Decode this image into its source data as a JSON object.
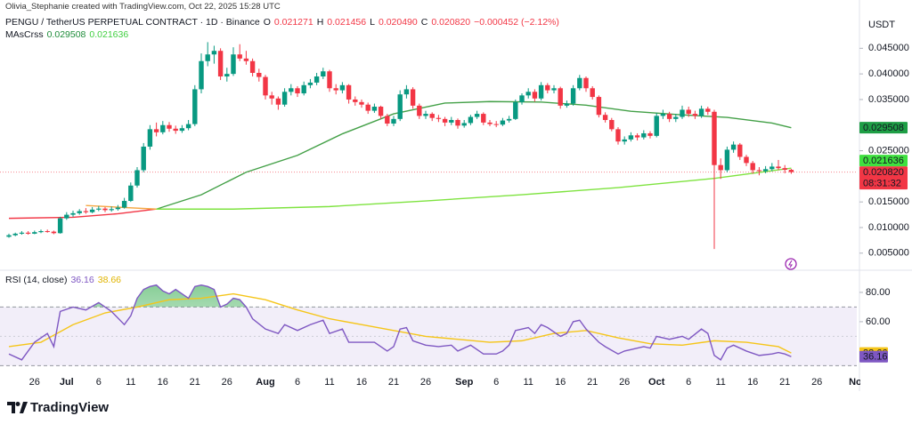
{
  "header": {
    "attribution": "Olivia_Stephanie created with TradingView.com, Oct 22, 2025 15:28 UTC",
    "symbol": "PENGU / TetherUS PERPETUAL CONTRACT · 1D · Binance",
    "ohlc": [
      {
        "key": "O",
        "value": "0.021271"
      },
      {
        "key": "H",
        "value": "0.021456"
      },
      {
        "key": "L",
        "value": "0.020490"
      },
      {
        "key": "C",
        "value": "0.020820"
      }
    ],
    "change": "−0.000452 (−2.12%)"
  },
  "chart_data": {
    "type": "candlestick",
    "currency": "USDT",
    "up_color": "#089981",
    "down_color": "#f23645",
    "candles": [
      [
        0.0082,
        0.0088,
        0.008,
        0.0085
      ],
      [
        0.0085,
        0.009,
        0.0083,
        0.0088
      ],
      [
        0.0088,
        0.0093,
        0.0086,
        0.009
      ],
      [
        0.009,
        0.0093,
        0.0086,
        0.0088
      ],
      [
        0.0088,
        0.0094,
        0.0087,
        0.0091
      ],
      [
        0.0091,
        0.0096,
        0.0089,
        0.0093
      ],
      [
        0.0093,
        0.0096,
        0.009,
        0.0092
      ],
      [
        0.0092,
        0.0094,
        0.0087,
        0.0089
      ],
      [
        0.0089,
        0.0121,
        0.0088,
        0.0118
      ],
      [
        0.0118,
        0.013,
        0.0115,
        0.0125
      ],
      [
        0.0125,
        0.0133,
        0.0121,
        0.0128
      ],
      [
        0.0128,
        0.0136,
        0.0125,
        0.0132
      ],
      [
        0.0132,
        0.0138,
        0.0127,
        0.013
      ],
      [
        0.013,
        0.014,
        0.0128,
        0.0135
      ],
      [
        0.0135,
        0.0142,
        0.0132,
        0.0137
      ],
      [
        0.0137,
        0.014,
        0.013,
        0.0134
      ],
      [
        0.0134,
        0.0141,
        0.0131,
        0.0136
      ],
      [
        0.0136,
        0.0144,
        0.0133,
        0.0139
      ],
      [
        0.0139,
        0.0158,
        0.0137,
        0.0152
      ],
      [
        0.0152,
        0.0188,
        0.015,
        0.0182
      ],
      [
        0.0182,
        0.0218,
        0.0178,
        0.0212
      ],
      [
        0.0212,
        0.0265,
        0.0208,
        0.0258
      ],
      [
        0.0258,
        0.03,
        0.0252,
        0.0292
      ],
      [
        0.0292,
        0.0305,
        0.0278,
        0.0286
      ],
      [
        0.0286,
        0.0308,
        0.0282,
        0.03
      ],
      [
        0.03,
        0.0306,
        0.0287,
        0.0293
      ],
      [
        0.0293,
        0.0299,
        0.0283,
        0.0289
      ],
      [
        0.0289,
        0.03,
        0.0285,
        0.0294
      ],
      [
        0.0294,
        0.031,
        0.029,
        0.0302
      ],
      [
        0.0302,
        0.0378,
        0.0298,
        0.037
      ],
      [
        0.037,
        0.044,
        0.0362,
        0.0425
      ],
      [
        0.0425,
        0.0462,
        0.0415,
        0.0438
      ],
      [
        0.0438,
        0.0455,
        0.042,
        0.0445
      ],
      [
        0.0445,
        0.045,
        0.0388,
        0.0395
      ],
      [
        0.0395,
        0.0412,
        0.0385,
        0.04
      ],
      [
        0.04,
        0.0452,
        0.0396,
        0.0438
      ],
      [
        0.0438,
        0.0458,
        0.0425,
        0.043
      ],
      [
        0.043,
        0.0445,
        0.0418,
        0.0425
      ],
      [
        0.0425,
        0.043,
        0.0395,
        0.0402
      ],
      [
        0.0402,
        0.041,
        0.0385,
        0.0394
      ],
      [
        0.0394,
        0.0398,
        0.035,
        0.0358
      ],
      [
        0.0358,
        0.0365,
        0.034,
        0.0352
      ],
      [
        0.0352,
        0.0356,
        0.033,
        0.034
      ],
      [
        0.034,
        0.0372,
        0.0336,
        0.0365
      ],
      [
        0.0365,
        0.038,
        0.0358,
        0.0372
      ],
      [
        0.0372,
        0.0376,
        0.0355,
        0.0362
      ],
      [
        0.0362,
        0.0385,
        0.0358,
        0.0378
      ],
      [
        0.0378,
        0.039,
        0.0372,
        0.0383
      ],
      [
        0.0383,
        0.0402,
        0.0378,
        0.0395
      ],
      [
        0.0395,
        0.0412,
        0.039,
        0.0405
      ],
      [
        0.0405,
        0.0408,
        0.0365,
        0.0372
      ],
      [
        0.0372,
        0.038,
        0.036,
        0.0368
      ],
      [
        0.0368,
        0.0384,
        0.0362,
        0.0378
      ],
      [
        0.0378,
        0.038,
        0.0342,
        0.035
      ],
      [
        0.035,
        0.0356,
        0.0338,
        0.0345
      ],
      [
        0.0345,
        0.035,
        0.0334,
        0.034
      ],
      [
        0.034,
        0.0344,
        0.0322,
        0.0328
      ],
      [
        0.0328,
        0.0342,
        0.0324,
        0.0336
      ],
      [
        0.0336,
        0.0338,
        0.0312,
        0.0318
      ],
      [
        0.0318,
        0.0322,
        0.0298,
        0.0303
      ],
      [
        0.0303,
        0.0318,
        0.0298,
        0.0312
      ],
      [
        0.0312,
        0.0368,
        0.0308,
        0.036
      ],
      [
        0.036,
        0.0378,
        0.0352,
        0.037
      ],
      [
        0.037,
        0.0374,
        0.0332,
        0.0338
      ],
      [
        0.0338,
        0.0342,
        0.0312,
        0.0318
      ],
      [
        0.0318,
        0.0328,
        0.0312,
        0.0322
      ],
      [
        0.0322,
        0.0325,
        0.0308,
        0.0314
      ],
      [
        0.0314,
        0.032,
        0.0306,
        0.0312
      ],
      [
        0.0312,
        0.0316,
        0.0298,
        0.0305
      ],
      [
        0.0305,
        0.0316,
        0.03,
        0.031
      ],
      [
        0.031,
        0.0313,
        0.0293,
        0.0299
      ],
      [
        0.0299,
        0.031,
        0.0295,
        0.0304
      ],
      [
        0.0304,
        0.032,
        0.03,
        0.0316
      ],
      [
        0.0316,
        0.0328,
        0.0312,
        0.0322
      ],
      [
        0.0322,
        0.0325,
        0.03,
        0.0305
      ],
      [
        0.0305,
        0.031,
        0.0298,
        0.0302
      ],
      [
        0.0302,
        0.0308,
        0.0296,
        0.0301
      ],
      [
        0.0301,
        0.0314,
        0.0298,
        0.0309
      ],
      [
        0.0309,
        0.0318,
        0.0305,
        0.0312
      ],
      [
        0.0312,
        0.035,
        0.031,
        0.0345
      ],
      [
        0.0345,
        0.0362,
        0.034,
        0.0358
      ],
      [
        0.0358,
        0.0372,
        0.0352,
        0.0365
      ],
      [
        0.0365,
        0.037,
        0.0346,
        0.0352
      ],
      [
        0.0352,
        0.0384,
        0.0348,
        0.0378
      ],
      [
        0.0378,
        0.0382,
        0.0362,
        0.0368
      ],
      [
        0.0368,
        0.0378,
        0.0362,
        0.0372
      ],
      [
        0.0372,
        0.0375,
        0.0332,
        0.0338
      ],
      [
        0.0338,
        0.0348,
        0.0334,
        0.0342
      ],
      [
        0.0342,
        0.0378,
        0.0338,
        0.0372
      ],
      [
        0.0372,
        0.0398,
        0.0368,
        0.0392
      ],
      [
        0.0392,
        0.0395,
        0.0365,
        0.0372
      ],
      [
        0.0372,
        0.0376,
        0.035,
        0.0355
      ],
      [
        0.0355,
        0.0358,
        0.0315,
        0.032
      ],
      [
        0.032,
        0.0325,
        0.0305,
        0.031
      ],
      [
        0.031,
        0.0314,
        0.0288,
        0.0292
      ],
      [
        0.0292,
        0.0296,
        0.0262,
        0.0268
      ],
      [
        0.0268,
        0.0278,
        0.0262,
        0.0272
      ],
      [
        0.0272,
        0.0286,
        0.0268,
        0.028
      ],
      [
        0.028,
        0.0284,
        0.027,
        0.0276
      ],
      [
        0.0276,
        0.029,
        0.0272,
        0.0284
      ],
      [
        0.0284,
        0.0288,
        0.0274,
        0.0279
      ],
      [
        0.0279,
        0.0324,
        0.0276,
        0.0318
      ],
      [
        0.0318,
        0.033,
        0.0312,
        0.0322
      ],
      [
        0.0322,
        0.0326,
        0.0306,
        0.0312
      ],
      [
        0.0312,
        0.0322,
        0.0306,
        0.0316
      ],
      [
        0.0316,
        0.0338,
        0.0312,
        0.033
      ],
      [
        0.033,
        0.0336,
        0.0316,
        0.0322
      ],
      [
        0.0322,
        0.0328,
        0.0312,
        0.0318
      ],
      [
        0.0318,
        0.0338,
        0.0314,
        0.0332
      ],
      [
        0.0332,
        0.0336,
        0.032,
        0.0326
      ],
      [
        0.0326,
        0.033,
        0.0058,
        0.0222
      ],
      [
        0.0222,
        0.0235,
        0.0195,
        0.0212
      ],
      [
        0.0212,
        0.0258,
        0.0208,
        0.0252
      ],
      [
        0.0252,
        0.0268,
        0.0246,
        0.0262
      ],
      [
        0.0262,
        0.0265,
        0.0232,
        0.0238
      ],
      [
        0.0238,
        0.0242,
        0.022,
        0.0226
      ],
      [
        0.0226,
        0.023,
        0.0205,
        0.0212
      ],
      [
        0.0212,
        0.0218,
        0.0202,
        0.021
      ],
      [
        0.021,
        0.022,
        0.0206,
        0.0214
      ],
      [
        0.0214,
        0.0226,
        0.021,
        0.0219
      ],
      [
        0.0219,
        0.0232,
        0.0212,
        0.0216
      ],
      [
        0.0216,
        0.0222,
        0.0206,
        0.021271
      ],
      [
        0.021271,
        0.021456,
        0.02049,
        0.02082
      ]
    ],
    "xlim": [
      -1.39,
      131.25
    ],
    "xticks": [
      {
        "value": 4,
        "label": "26"
      },
      {
        "value": 9,
        "label": "Jul"
      },
      {
        "value": 14,
        "label": "6"
      },
      {
        "value": 19,
        "label": "11"
      },
      {
        "value": 24,
        "label": "16"
      },
      {
        "value": 29,
        "label": "21"
      },
      {
        "value": 34,
        "label": "26"
      },
      {
        "value": 40,
        "label": "Aug"
      },
      {
        "value": 45,
        "label": "6"
      },
      {
        "value": 50,
        "label": "11"
      },
      {
        "value": 55,
        "label": "16"
      },
      {
        "value": 60,
        "label": "21"
      },
      {
        "value": 65,
        "label": "26"
      },
      {
        "value": 71,
        "label": "Sep"
      },
      {
        "value": 76,
        "label": "6"
      },
      {
        "value": 81,
        "label": "11"
      },
      {
        "value": 86,
        "label": "16"
      },
      {
        "value": 91,
        "label": "21"
      },
      {
        "value": 96,
        "label": "26"
      },
      {
        "value": 101,
        "label": "Oct"
      },
      {
        "value": 106,
        "label": "6"
      },
      {
        "value": 111,
        "label": "11"
      },
      {
        "value": 116,
        "label": "16"
      },
      {
        "value": 121,
        "label": "21"
      },
      {
        "value": 126,
        "label": "26"
      },
      {
        "value": 132,
        "label": "No"
      }
    ],
    "ylim": [
      0.00184,
      0.052
    ],
    "yticks": [
      {
        "value": 0.045,
        "label": "0.045000"
      },
      {
        "value": 0.04,
        "label": "0.040000"
      },
      {
        "value": 0.035,
        "label": "0.035000"
      },
      {
        "value": 0.025,
        "label": "0.025000"
      },
      {
        "value": 0.015,
        "label": "0.015000"
      },
      {
        "value": 0.01,
        "label": "0.010000"
      },
      {
        "value": 0.005,
        "label": "0.005000"
      }
    ],
    "ma": {
      "title": "MAsCrss",
      "legend_values": [
        "0.029508",
        "0.021636"
      ],
      "series": [
        {
          "color": "#43a047",
          "color_before_cross": "#f23645",
          "x": [
            0,
            10,
            17,
            23,
            30,
            37,
            45,
            52,
            60,
            68,
            75,
            83,
            90,
            97,
            105,
            112,
            119,
            122
          ],
          "values": [
            0.0118,
            0.012,
            0.0127,
            0.0136,
            0.0164,
            0.0208,
            0.0241,
            0.0283,
            0.0322,
            0.0343,
            0.0346,
            0.0345,
            0.0339,
            0.0327,
            0.032,
            0.0315,
            0.0304,
            0.0295
          ]
        },
        {
          "color": "#7ee33f",
          "color_before_cross": "#f5a742",
          "x": [
            12,
            23,
            35,
            50,
            65,
            80,
            95,
            110,
            122
          ],
          "values": [
            0.0143,
            0.0136,
            0.0136,
            0.0141,
            0.0152,
            0.0164,
            0.0178,
            0.0196,
            0.0216
          ]
        }
      ]
    },
    "price_tags": [
      {
        "value": 0.029508,
        "label": "0.029508",
        "color": "#1e9e45",
        "text_color": "#000000"
      },
      {
        "value": 0.021636,
        "label": "0.021636",
        "color": "#3fe03f",
        "text_color": "#000000"
      },
      {
        "value": 0.02082,
        "label": "0.020820",
        "color": "#f23645",
        "text_color": "#ffffff",
        "countdown": "08:31:32"
      }
    ],
    "rsi": {
      "title": "RSI (14, close)",
      "legend_values": [
        "36.16",
        "38.66"
      ],
      "ylim": [
        24.8,
        94.5
      ],
      "yticks": [
        {
          "value": 80,
          "label": "80.00"
        },
        {
          "value": 60,
          "label": "60.00"
        }
      ],
      "band": [
        30,
        70
      ],
      "midline": 50,
      "band_color": "#7e57c2",
      "overbought_color": "#26a641",
      "series": [
        {
          "color": "#7e57c2",
          "x": [
            0,
            2,
            4,
            6,
            7,
            8,
            10,
            12,
            14,
            16,
            18,
            19,
            20,
            21,
            22,
            23,
            24,
            25,
            26,
            28,
            29,
            30,
            31,
            32,
            33,
            34,
            35,
            36,
            37,
            38,
            40,
            42,
            43,
            45,
            47,
            49,
            50,
            52,
            53,
            55,
            57,
            59,
            60,
            61,
            62,
            63,
            65,
            67,
            69,
            70,
            72,
            74,
            76,
            77,
            78,
            79,
            81,
            82,
            83,
            84,
            86,
            87,
            88,
            89,
            90,
            92,
            93,
            95,
            96,
            97,
            99,
            100,
            101,
            103,
            105,
            106,
            108,
            109,
            110,
            111,
            112,
            113,
            115,
            117,
            119,
            120,
            121,
            122
          ],
          "values": [
            38,
            34,
            46,
            52,
            43,
            67,
            70,
            68,
            73,
            67,
            58,
            64,
            76,
            82,
            84,
            85,
            81,
            79,
            82,
            76,
            84,
            85,
            84,
            82,
            70,
            72,
            76,
            75,
            70,
            62,
            55,
            52,
            58,
            54,
            58,
            61,
            52,
            55,
            46,
            46,
            46,
            40,
            43,
            55,
            56,
            47,
            44,
            43,
            44,
            40,
            44,
            38,
            38,
            40,
            44,
            54,
            56,
            52,
            58,
            56,
            50,
            52,
            60,
            61,
            55,
            46,
            43,
            38,
            40,
            41,
            43,
            42,
            50,
            48,
            50,
            48,
            55,
            52,
            37,
            34,
            42,
            44,
            40,
            37,
            38,
            39,
            38,
            36.16
          ]
        },
        {
          "color": "#f5c518",
          "x": [
            0,
            5,
            10,
            15,
            20,
            25,
            30,
            35,
            40,
            45,
            50,
            55,
            60,
            65,
            70,
            75,
            80,
            85,
            90,
            95,
            100,
            105,
            110,
            115,
            120,
            122
          ],
          "values": [
            43,
            46,
            58,
            66,
            70,
            75,
            76,
            79,
            75,
            68,
            62,
            58,
            54,
            50,
            48,
            46,
            47,
            52,
            54,
            49,
            45,
            44,
            47,
            46,
            43,
            38.66
          ]
        }
      ],
      "tags": [
        {
          "value": 38.66,
          "label": "38.66",
          "color": "#f5c518",
          "text_color": "#000000"
        },
        {
          "value": 36.16,
          "label": "36.16",
          "color": "#7e57c2",
          "text_color": "#ffffff"
        }
      ]
    }
  },
  "footer": {
    "brand": "TradingView"
  }
}
